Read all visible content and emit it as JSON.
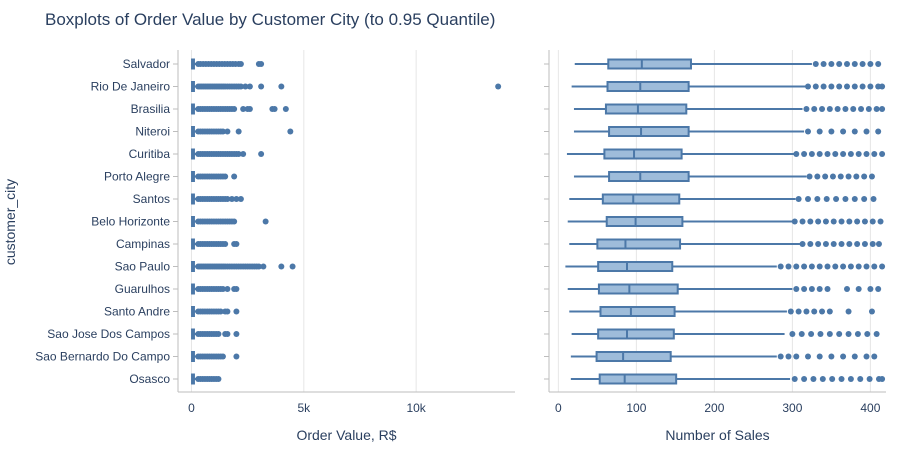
{
  "chart_data": {
    "type": "box",
    "title": "Boxplots of Order Value by Customer City (to 0.95 Quantile)",
    "ylabel": "customer_city",
    "cities": [
      "Salvador",
      "Rio De Janeiro",
      "Brasilia",
      "Niteroi",
      "Curitiba",
      "Porto Alegre",
      "Santos",
      "Belo Horizonte",
      "Campinas",
      "Sao Paulo",
      "Guarulhos",
      "Santo Andre",
      "Sao Jose Dos Campos",
      "Sao Bernardo Do Campo",
      "Osasco"
    ],
    "colors": {
      "marker": "#4c78a8",
      "box_fill": "#9ebcda",
      "grid": "#e6e6e6",
      "axis": "#bdbdbd"
    },
    "panels": [
      {
        "name": "order-value",
        "xlabel": "Order Value, R$",
        "xlim": [
          -600,
          14400
        ],
        "xticks": [
          0,
          5000,
          10000
        ],
        "xticklabels": [
          "0",
          "5k",
          "10k"
        ],
        "series": [
          {
            "city": "Salvador",
            "min": 0,
            "q1": 25,
            "median": 60,
            "q3": 110,
            "max": 260,
            "outliers": [
              300,
              400,
              520,
              640,
              760,
              880,
              1000,
              1120,
              1240,
              1360,
              1480,
              1600,
              1720,
              1840,
              1960,
              2100,
              2200,
              3000,
              3100
            ]
          },
          {
            "city": "Rio De Janeiro",
            "min": 0,
            "q1": 25,
            "median": 60,
            "q3": 110,
            "max": 260,
            "outliers": [
              300,
              380,
              460,
              540,
              620,
              700,
              780,
              860,
              940,
              1020,
              1100,
              1180,
              1260,
              1340,
              1420,
              1500,
              1600,
              1700,
              1800,
              1900,
              2000,
              2100,
              2200,
              2400,
              2600,
              3100,
              4000,
              13650
            ]
          },
          {
            "city": "Brasilia",
            "min": 0,
            "q1": 25,
            "median": 60,
            "q3": 110,
            "max": 260,
            "outliers": [
              300,
              400,
              500,
              600,
              700,
              800,
              900,
              1000,
              1100,
              1200,
              1300,
              1400,
              1500,
              1600,
              1700,
              1800,
              1900,
              2300,
              2500,
              2600,
              3600,
              3700,
              4200
            ]
          },
          {
            "city": "Niteroi",
            "min": 0,
            "q1": 25,
            "median": 60,
            "q3": 110,
            "max": 260,
            "outliers": [
              300,
              400,
              500,
              600,
              700,
              800,
              900,
              1000,
              1100,
              1200,
              1300,
              1400,
              1600,
              2100,
              4400
            ]
          },
          {
            "city": "Curitiba",
            "min": 0,
            "q1": 25,
            "median": 60,
            "q3": 110,
            "max": 260,
            "outliers": [
              300,
              400,
              500,
              600,
              700,
              800,
              900,
              1000,
              1100,
              1200,
              1300,
              1400,
              1500,
              1600,
              1700,
              1800,
              1900,
              2000,
              2100,
              2300,
              3100
            ]
          },
          {
            "city": "Porto Alegre",
            "min": 0,
            "q1": 25,
            "median": 60,
            "q3": 110,
            "max": 260,
            "outliers": [
              300,
              400,
              500,
              600,
              700,
              800,
              900,
              1000,
              1100,
              1200,
              1300,
              1400,
              1500,
              1900
            ]
          },
          {
            "city": "Santos",
            "min": 0,
            "q1": 25,
            "median": 60,
            "q3": 110,
            "max": 260,
            "outliers": [
              300,
              400,
              500,
              600,
              700,
              800,
              900,
              1000,
              1100,
              1200,
              1300,
              1400,
              1500,
              1600,
              1800,
              2000,
              2200
            ]
          },
          {
            "city": "Belo Horizonte",
            "min": 0,
            "q1": 25,
            "median": 60,
            "q3": 110,
            "max": 260,
            "outliers": [
              300,
              400,
              500,
              600,
              700,
              800,
              900,
              1000,
              1100,
              1200,
              1300,
              1400,
              1500,
              1600,
              1700,
              1800,
              1900,
              3300
            ]
          },
          {
            "city": "Campinas",
            "min": 0,
            "q1": 25,
            "median": 60,
            "q3": 110,
            "max": 260,
            "outliers": [
              300,
              400,
              500,
              600,
              700,
              800,
              900,
              1000,
              1100,
              1200,
              1300,
              1400,
              1500,
              1900,
              2000
            ]
          },
          {
            "city": "Sao Paulo",
            "min": 0,
            "q1": 25,
            "median": 60,
            "q3": 110,
            "max": 260,
            "outliers": [
              300,
              380,
              460,
              540,
              620,
              700,
              780,
              860,
              940,
              1020,
              1100,
              1180,
              1260,
              1340,
              1420,
              1500,
              1600,
              1700,
              1800,
              1900,
              2000,
              2100,
              2200,
              2300,
              2400,
              2500,
              2600,
              2700,
              2800,
              2900,
              3000,
              3200,
              4000,
              4500
            ]
          },
          {
            "city": "Guarulhos",
            "min": 0,
            "q1": 25,
            "median": 60,
            "q3": 110,
            "max": 260,
            "outliers": [
              300,
              400,
              500,
              600,
              700,
              800,
              900,
              1000,
              1100,
              1200,
              1300,
              1400,
              1600,
              1900,
              2000
            ]
          },
          {
            "city": "Santo Andre",
            "min": 0,
            "q1": 25,
            "median": 60,
            "q3": 110,
            "max": 260,
            "outliers": [
              300,
              400,
              500,
              600,
              700,
              800,
              900,
              1000,
              1100,
              1200,
              1300,
              1500,
              1600,
              2000
            ]
          },
          {
            "city": "Sao Jose Dos Campos",
            "min": 0,
            "q1": 25,
            "median": 60,
            "q3": 110,
            "max": 260,
            "outliers": [
              300,
              400,
              500,
              600,
              700,
              800,
              900,
              1000,
              1100,
              1200,
              1500,
              1600,
              2000
            ]
          },
          {
            "city": "Sao Bernardo Do Campo",
            "min": 0,
            "q1": 25,
            "median": 60,
            "q3": 110,
            "max": 260,
            "outliers": [
              300,
              400,
              500,
              600,
              700,
              800,
              900,
              1000,
              1100,
              1200,
              1300,
              1400,
              2000
            ]
          },
          {
            "city": "Osasco",
            "min": 0,
            "q1": 25,
            "median": 60,
            "q3": 110,
            "max": 260,
            "outliers": [
              300,
              400,
              500,
              600,
              700,
              800,
              900,
              1000,
              1100,
              1200
            ]
          }
        ]
      },
      {
        "name": "number-of-sales",
        "xlabel": "Number of Sales",
        "xlim": [
          -12,
          420
        ],
        "xticks": [
          0,
          100,
          200,
          300,
          400
        ],
        "xticklabels": [
          "0",
          "100",
          "200",
          "300",
          "400"
        ],
        "series": [
          {
            "city": "Salvador",
            "min": 21,
            "q1": 64,
            "median": 107,
            "q3": 170,
            "max": 325,
            "outliers": [
              330,
              340,
              350,
              360,
              370,
              380,
              390,
              400,
              410
            ]
          },
          {
            "city": "Rio De Janeiro",
            "min": 17,
            "q1": 63,
            "median": 105,
            "q3": 167,
            "max": 317,
            "outliers": [
              320,
              330,
              340,
              350,
              360,
              370,
              380,
              390,
              400,
              410,
              415
            ]
          },
          {
            "city": "Brasilia",
            "min": 20,
            "q1": 61,
            "median": 102,
            "q3": 164,
            "max": 313,
            "outliers": [
              318,
              328,
              338,
              348,
              358,
              368,
              378,
              388,
              398,
              408,
              415
            ]
          },
          {
            "city": "Niteroi",
            "min": 20,
            "q1": 65,
            "median": 106,
            "q3": 167,
            "max": 315,
            "outliers": [
              320,
              335,
              350,
              365,
              380,
              395,
              410
            ]
          },
          {
            "city": "Curitiba",
            "min": 11,
            "q1": 59,
            "median": 97,
            "q3": 158,
            "max": 302,
            "outliers": [
              305,
              315,
              325,
              335,
              345,
              355,
              365,
              375,
              385,
              395,
              405,
              415
            ]
          },
          {
            "city": "Porto Alegre",
            "min": 20,
            "q1": 65,
            "median": 105,
            "q3": 167,
            "max": 318,
            "outliers": [
              322,
              332,
              342,
              352,
              362,
              372,
              382,
              392,
              402
            ]
          },
          {
            "city": "Santos",
            "min": 14,
            "q1": 57,
            "median": 96,
            "q3": 155,
            "max": 304,
            "outliers": [
              308,
              320,
              332,
              344,
              356,
              368,
              380,
              392,
              404
            ]
          },
          {
            "city": "Belo Horizonte",
            "min": 12,
            "q1": 62,
            "median": 99,
            "q3": 159,
            "max": 300,
            "outliers": [
              303,
              313,
              323,
              333,
              343,
              353,
              363,
              373,
              383,
              393,
              403,
              413
            ]
          },
          {
            "city": "Campinas",
            "min": 14,
            "q1": 50,
            "median": 86,
            "q3": 156,
            "max": 310,
            "outliers": [
              313,
              323,
              333,
              343,
              353,
              363,
              373,
              383,
              393,
              403,
              411
            ]
          },
          {
            "city": "Sao Paulo",
            "min": 9,
            "q1": 51,
            "median": 88,
            "q3": 146,
            "max": 280,
            "outliers": [
              285,
              295,
              305,
              315,
              325,
              335,
              345,
              355,
              365,
              375,
              385,
              395,
              405,
              415
            ]
          },
          {
            "city": "Guarulhos",
            "min": 12,
            "q1": 52,
            "median": 91,
            "q3": 153,
            "max": 300,
            "outliers": [
              305,
              315,
              325,
              335,
              345,
              370,
              385,
              400,
              410
            ]
          },
          {
            "city": "Santo Andre",
            "min": 14,
            "q1": 54,
            "median": 93,
            "q3": 149,
            "max": 293,
            "outliers": [
              298,
              308,
              318,
              328,
              338,
              348,
              372,
              402
            ]
          },
          {
            "city": "Sao Jose Dos Campos",
            "min": 17,
            "q1": 51,
            "median": 88,
            "q3": 148,
            "max": 290,
            "outliers": [
              300,
              312,
              324,
              336,
              348,
              360,
              372,
              384,
              396,
              408
            ]
          },
          {
            "city": "Sao Bernardo Do Campo",
            "min": 16,
            "q1": 49,
            "median": 83,
            "q3": 144,
            "max": 280,
            "outliers": [
              285,
              295,
              305,
              320,
              335,
              350,
              365,
              380,
              395,
              405
            ]
          },
          {
            "city": "Osasco",
            "min": 16,
            "q1": 53,
            "median": 85,
            "q3": 151,
            "max": 297,
            "outliers": [
              303,
              315,
              327,
              339,
              351,
              363,
              375,
              387,
              399,
              411,
              415
            ]
          }
        ]
      }
    ]
  }
}
